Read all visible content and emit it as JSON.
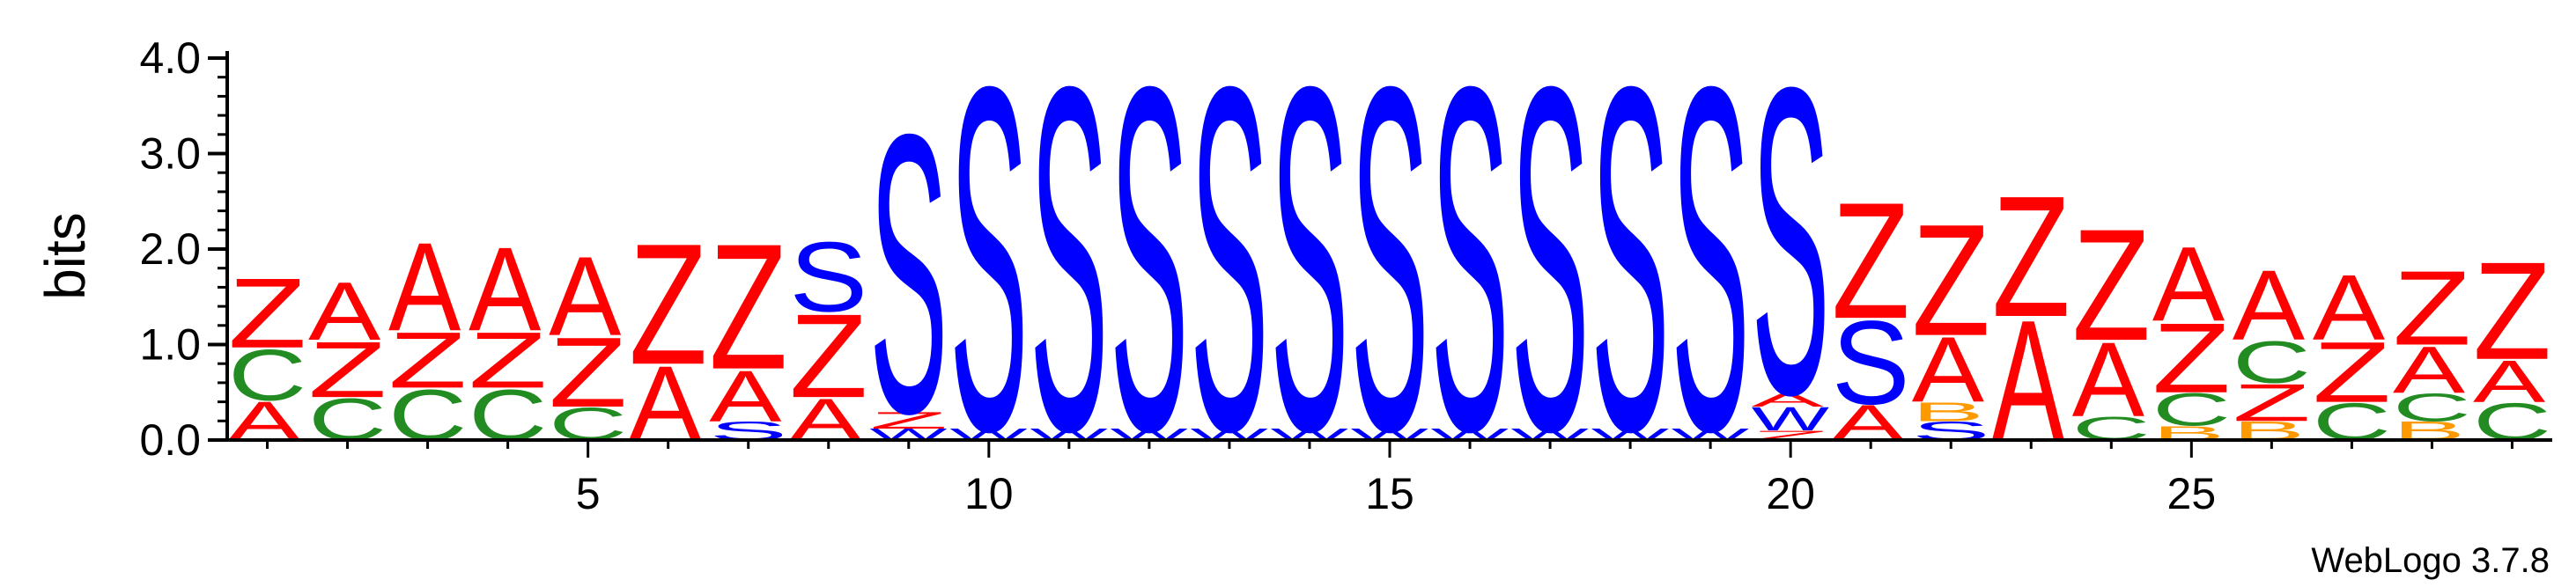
{
  "colors": {
    "A": "#ff0000",
    "Z": "#ff0000",
    "S": "#0000ff",
    "W": "#0000ff",
    "C": "#228b22",
    "B": "#ff9900",
    "D": "#ff0000",
    "Q": "#800080",
    "axis": "#000000"
  },
  "chart_data": {
    "type": "sequence-logo",
    "title": "",
    "xlabel": "",
    "ylabel": "bits",
    "ylim": [
      0,
      4.0
    ],
    "y_ticks": [
      0.0,
      1.0,
      2.0,
      3.0,
      4.0
    ],
    "y_tick_labels": [
      "0.0",
      "1.0",
      "2.0",
      "3.0",
      "4.0"
    ],
    "x_range": [
      1,
      29
    ],
    "x_tick_labels": [
      "5",
      "10",
      "15",
      "20",
      "25"
    ],
    "x_tick_values": [
      5,
      10,
      15,
      20,
      25
    ],
    "credit": "WebLogo 3.7.8",
    "positions": [
      {
        "pos": 1,
        "stack": [
          [
            "A",
            0.42
          ],
          [
            "C",
            0.55
          ],
          [
            "Z",
            0.75
          ]
        ]
      },
      {
        "pos": 2,
        "stack": [
          [
            "C",
            0.45
          ],
          [
            "Z",
            0.6
          ],
          [
            "A",
            0.62
          ]
        ]
      },
      {
        "pos": 3,
        "stack": [
          [
            "C",
            0.55
          ],
          [
            "Z",
            0.6
          ],
          [
            "A",
            0.95
          ]
        ]
      },
      {
        "pos": 4,
        "stack": [
          [
            "C",
            0.55
          ],
          [
            "Z",
            0.6
          ],
          [
            "A",
            0.9
          ]
        ]
      },
      {
        "pos": 5,
        "stack": [
          [
            "C",
            0.35
          ],
          [
            "Z",
            0.75
          ],
          [
            "A",
            0.85
          ]
        ]
      },
      {
        "pos": 6,
        "stack": [
          [
            "A",
            0.8
          ],
          [
            "Z",
            1.3
          ]
        ]
      },
      {
        "pos": 7,
        "stack": [
          [
            "S",
            0.2
          ],
          [
            "A",
            0.55
          ],
          [
            "Z",
            1.35
          ]
        ]
      },
      {
        "pos": 8,
        "stack": [
          [
            "A",
            0.45
          ],
          [
            "Z",
            0.9
          ],
          [
            "S",
            0.75
          ]
        ]
      },
      {
        "pos": 9,
        "stack": [
          [
            "W",
            0.12
          ],
          [
            "Z",
            0.18
          ],
          [
            "S",
            3.0
          ]
        ]
      },
      {
        "pos": 10,
        "stack": [
          [
            "W",
            0.12
          ],
          [
            "S",
            3.7
          ]
        ]
      },
      {
        "pos": 11,
        "stack": [
          [
            "W",
            0.12
          ],
          [
            "S",
            3.7
          ]
        ]
      },
      {
        "pos": 12,
        "stack": [
          [
            "W",
            0.12
          ],
          [
            "S",
            3.7
          ]
        ]
      },
      {
        "pos": 13,
        "stack": [
          [
            "W",
            0.12
          ],
          [
            "S",
            3.7
          ]
        ]
      },
      {
        "pos": 14,
        "stack": [
          [
            "W",
            0.12
          ],
          [
            "S",
            3.7
          ]
        ]
      },
      {
        "pos": 15,
        "stack": [
          [
            "W",
            0.12
          ],
          [
            "S",
            3.7
          ]
        ]
      },
      {
        "pos": 16,
        "stack": [
          [
            "W",
            0.12
          ],
          [
            "S",
            3.7
          ]
        ]
      },
      {
        "pos": 17,
        "stack": [
          [
            "W",
            0.12
          ],
          [
            "S",
            3.7
          ]
        ]
      },
      {
        "pos": 18,
        "stack": [
          [
            "W",
            0.12
          ],
          [
            "S",
            3.7
          ]
        ]
      },
      {
        "pos": 19,
        "stack": [
          [
            "W",
            0.12
          ],
          [
            "S",
            3.7
          ]
        ]
      },
      {
        "pos": 20,
        "stack": [
          [
            "Z",
            0.1
          ],
          [
            "W",
            0.25
          ],
          [
            "A",
            0.15
          ],
          [
            "S",
            3.3
          ]
        ]
      },
      {
        "pos": 21,
        "stack": [
          [
            "A",
            0.38
          ],
          [
            "S",
            0.9
          ],
          [
            "Z",
            1.25
          ]
        ]
      },
      {
        "pos": 22,
        "stack": [
          [
            "S",
            0.2
          ],
          [
            "B",
            0.2
          ],
          [
            "A",
            0.7
          ],
          [
            "Z",
            1.2
          ]
        ]
      },
      {
        "pos": 23,
        "stack": [
          [
            "A",
            1.3
          ],
          [
            "Z",
            1.3
          ]
        ]
      },
      {
        "pos": 24,
        "stack": [
          [
            "C",
            0.25
          ],
          [
            "A",
            0.8
          ],
          [
            "Z",
            1.2
          ]
        ]
      },
      {
        "pos": 25,
        "stack": [
          [
            "B",
            0.15
          ],
          [
            "C",
            0.35
          ],
          [
            "Z",
            0.75
          ],
          [
            "A",
            0.8
          ]
        ]
      },
      {
        "pos": 26,
        "stack": [
          [
            "B",
            0.2
          ],
          [
            "Z",
            0.4
          ],
          [
            "C",
            0.45
          ],
          [
            "A",
            0.75
          ]
        ]
      },
      {
        "pos": 27,
        "stack": [
          [
            "C",
            0.4
          ],
          [
            "Z",
            0.65
          ],
          [
            "A",
            0.7
          ]
        ]
      },
      {
        "pos": 28,
        "stack": [
          [
            "B",
            0.2
          ],
          [
            "C",
            0.3
          ],
          [
            "A",
            0.5
          ],
          [
            "Z",
            0.8
          ]
        ]
      },
      {
        "pos": 29,
        "stack": [
          [
            "C",
            0.4
          ],
          [
            "A",
            0.45
          ],
          [
            "Z",
            1.05
          ]
        ]
      }
    ]
  }
}
